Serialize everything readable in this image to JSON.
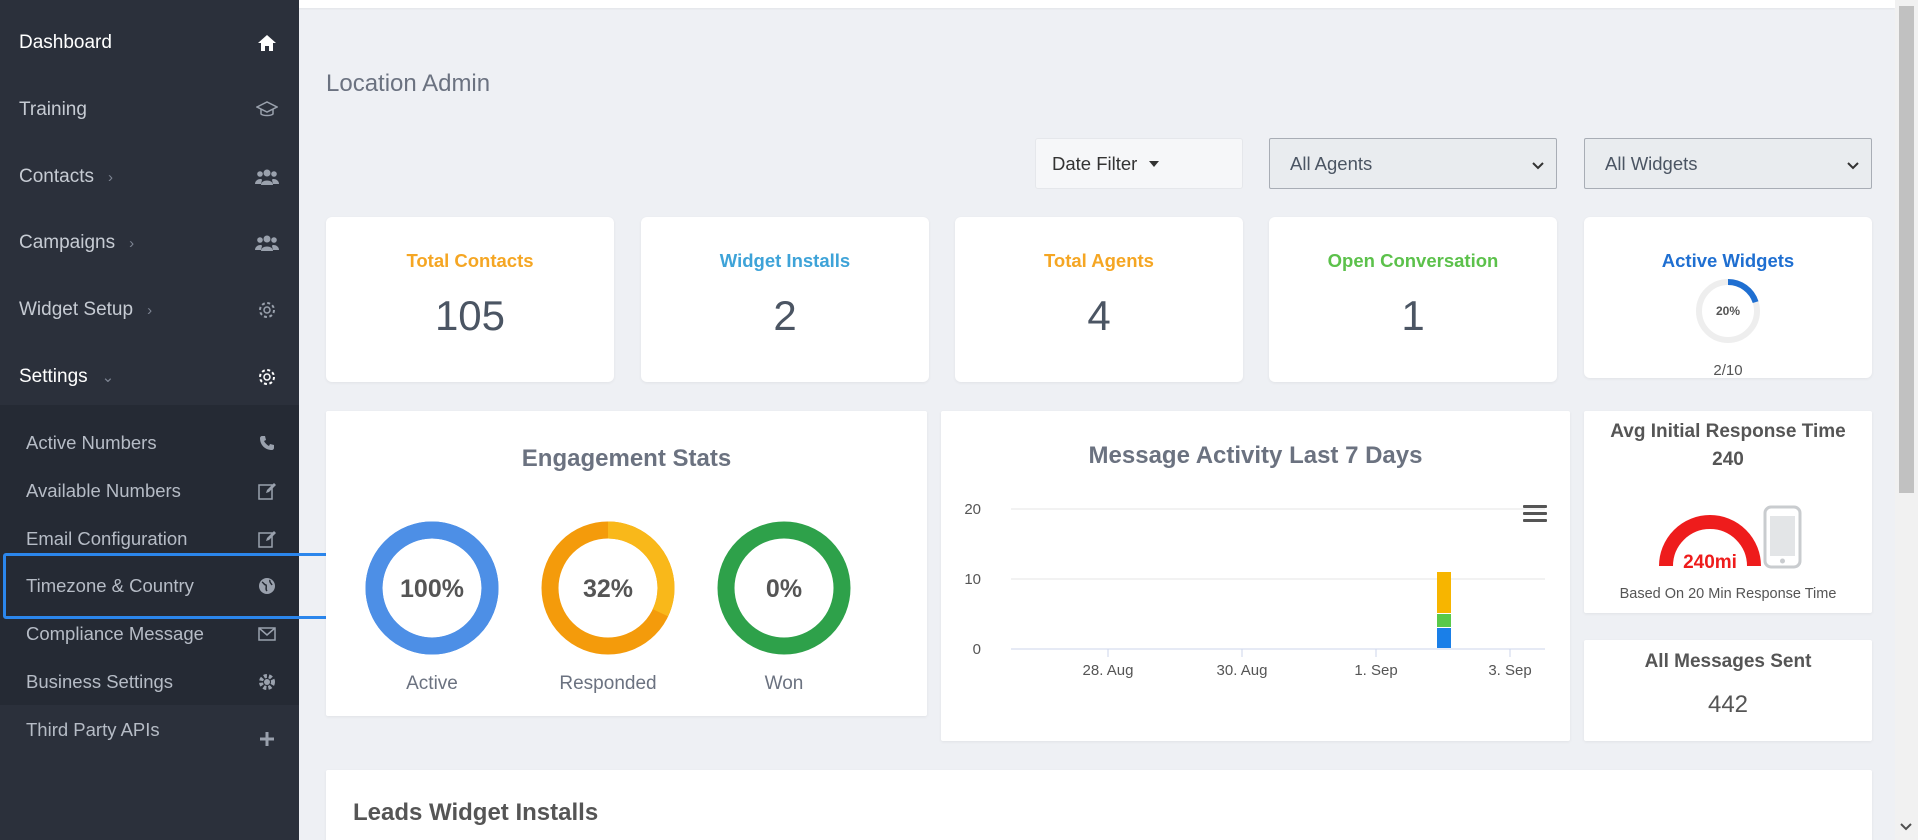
{
  "sidebar": {
    "items": [
      {
        "label": "Dashboard",
        "icon": "home-icon"
      },
      {
        "label": "Training",
        "icon": "graduation-cap-icon"
      },
      {
        "label": "Contacts",
        "icon": "users-icon"
      },
      {
        "label": "Campaigns",
        "icon": "users-icon"
      },
      {
        "label": "Widget Setup",
        "icon": "gear-icon"
      },
      {
        "label": "Settings",
        "icon": "gear-icon"
      }
    ],
    "chevron": "›",
    "chevron_down": "⌄",
    "submenu": [
      {
        "label": "Active Numbers",
        "icon": "phone-icon"
      },
      {
        "label": "Available Numbers",
        "icon": "edit-icon"
      },
      {
        "label": "Email Configuration",
        "icon": "edit-icon"
      },
      {
        "label": "Timezone & Country",
        "icon": "globe-icon"
      },
      {
        "label": "Compliance Message",
        "icon": "envelope-icon"
      },
      {
        "label": "Business Settings",
        "icon": "cog-icon"
      },
      {
        "label": "Third Party APIs",
        "icon": "plus-icon"
      }
    ]
  },
  "page": {
    "title": "Location Admin"
  },
  "filters": {
    "date_filter": "Date Filter",
    "agents": "All Agents",
    "widgets": "All Widgets"
  },
  "stats": [
    {
      "title": "Total Contacts",
      "value": "105",
      "color": "#f5a623"
    },
    {
      "title": "Widget Installs",
      "value": "2",
      "color": "#3ea3d8"
    },
    {
      "title": "Total Agents",
      "value": "4",
      "color": "#f5a623"
    },
    {
      "title": "Open Conversation",
      "value": "1",
      "color": "#5cc14b"
    }
  ],
  "active_widgets": {
    "title": "Active Widgets",
    "percent_label": "20%",
    "percent": 20,
    "ratio": "2/10",
    "color": "#1f6fd1"
  },
  "engagement": {
    "title": "Engagement Stats",
    "donuts": [
      {
        "label": "Active",
        "value_label": "100%",
        "percent": 100,
        "color": "#4d8fe6"
      },
      {
        "label": "Responded",
        "value_label": "32%",
        "percent": 32,
        "color": "#f49b0b",
        "accent": "#f9b81a"
      },
      {
        "label": "Won",
        "value_label": "0%",
        "percent": 0,
        "color": "#2ea14a"
      }
    ]
  },
  "chart_data": {
    "type": "bar",
    "title": "Message Activity Last 7 Days",
    "ylim": [
      0,
      20
    ],
    "yticks": [
      "0",
      "10",
      "20"
    ],
    "xticks": [
      "28. Aug",
      "30. Aug",
      "1. Sep",
      "3. Sep"
    ],
    "grid": true,
    "series": [
      {
        "color": "#1a7fe8",
        "values": [
          3
        ]
      },
      {
        "color": "#59c94a",
        "values": [
          2
        ]
      },
      {
        "color": "#f7b500",
        "values": [
          6
        ]
      }
    ]
  },
  "response_time": {
    "title": "Avg Initial Response Time",
    "value": "240",
    "gauge_label": "240mi",
    "footnote": "Based On 20 Min Response Time",
    "gauge_color": "#ee1c1c"
  },
  "messages_sent": {
    "title": "All Messages Sent",
    "value": "442"
  },
  "leads": {
    "title": "Leads Widget Installs"
  }
}
